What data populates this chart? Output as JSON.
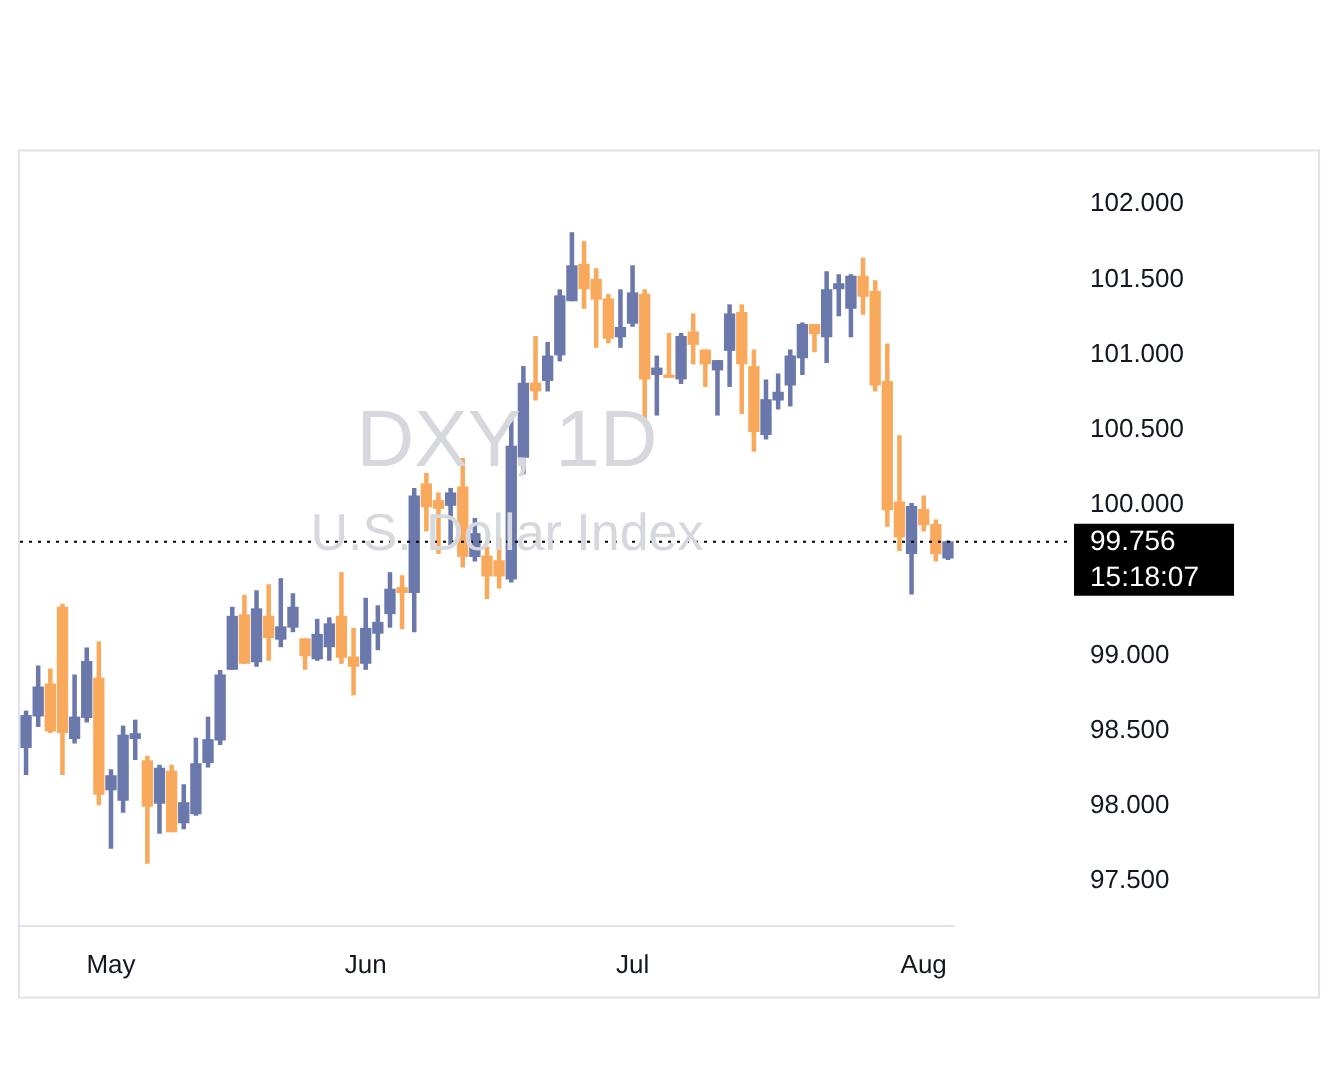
{
  "chart_data": {
    "type": "candlestick",
    "title": "DXY, 1D",
    "subtitle": "U.S. Dollar Index",
    "categories": [
      null,
      null,
      null,
      null,
      null,
      null,
      null,
      "May",
      null,
      null,
      null,
      null,
      null,
      null,
      null,
      null,
      null,
      null,
      null,
      null,
      null,
      null,
      null,
      null,
      null,
      null,
      null,
      null,
      "Jun",
      null,
      null,
      null,
      null,
      null,
      null,
      null,
      null,
      null,
      null,
      null,
      null,
      null,
      null,
      null,
      null,
      null,
      null,
      null,
      null,
      null,
      "Jul",
      null,
      null,
      null,
      null,
      null,
      null,
      null,
      null,
      null,
      null,
      null,
      null,
      null,
      null,
      null,
      null,
      null,
      null,
      null,
      null,
      null,
      null,
      null,
      "Aug",
      null,
      null
    ],
    "ohlc": [
      [
        98.39,
        98.63,
        98.21,
        98.6
      ],
      [
        98.6,
        98.93,
        98.53,
        98.79
      ],
      [
        98.81,
        98.91,
        98.49,
        98.5
      ],
      [
        99.32,
        99.34,
        98.21,
        98.49
      ],
      [
        98.45,
        98.87,
        98.42,
        98.59
      ],
      [
        98.59,
        99.05,
        98.56,
        98.96
      ],
      [
        98.85,
        99.09,
        98.01,
        98.08
      ],
      [
        98.11,
        98.24,
        97.72,
        98.2
      ],
      [
        98.04,
        98.53,
        97.96,
        98.47
      ],
      [
        98.45,
        98.57,
        98.31,
        98.48
      ],
      [
        98.3,
        98.33,
        97.62,
        98.0
      ],
      [
        98.02,
        98.27,
        97.82,
        98.25
      ],
      [
        98.23,
        98.27,
        97.83,
        97.83
      ],
      [
        97.89,
        98.14,
        97.85,
        98.02
      ],
      [
        97.95,
        98.45,
        97.94,
        98.28
      ],
      [
        98.29,
        98.59,
        98.26,
        98.44
      ],
      [
        98.44,
        98.9,
        98.41,
        98.87
      ],
      [
        98.91,
        99.32,
        98.91,
        99.26
      ],
      [
        99.27,
        99.4,
        98.95,
        98.95
      ],
      [
        98.96,
        99.43,
        98.93,
        99.31
      ],
      [
        99.26,
        99.47,
        98.97,
        99.12
      ],
      [
        99.11,
        99.51,
        99.06,
        99.19
      ],
      [
        99.19,
        99.41,
        99.16,
        99.32
      ],
      [
        99.11,
        99.11,
        98.91,
        99.0
      ],
      [
        98.98,
        99.24,
        98.97,
        99.14
      ],
      [
        99.06,
        99.25,
        98.97,
        99.21
      ],
      [
        99.26,
        99.55,
        98.95,
        98.99
      ],
      [
        98.99,
        99.18,
        98.74,
        98.93
      ],
      [
        98.95,
        99.38,
        98.91,
        99.18
      ],
      [
        99.15,
        99.33,
        99.04,
        99.22
      ],
      [
        99.28,
        99.55,
        99.19,
        99.44
      ],
      [
        99.45,
        99.53,
        99.18,
        99.42
      ],
      [
        99.42,
        100.11,
        99.16,
        100.06
      ],
      [
        100.14,
        100.21,
        99.83,
        99.99
      ],
      [
        100.03,
        100.08,
        99.68,
        99.98
      ],
      [
        100.0,
        100.11,
        99.72,
        100.08
      ],
      [
        100.12,
        100.31,
        99.59,
        99.66
      ],
      [
        99.66,
        99.91,
        99.63,
        99.81
      ],
      [
        99.66,
        99.72,
        99.38,
        99.53
      ],
      [
        99.63,
        99.78,
        99.45,
        99.53
      ],
      [
        99.51,
        100.58,
        99.49,
        100.39
      ],
      [
        100.32,
        100.92,
        100.21,
        100.81
      ],
      [
        100.81,
        101.12,
        100.7,
        100.76
      ],
      [
        100.83,
        101.08,
        100.76,
        100.99
      ],
      [
        101.0,
        101.43,
        100.96,
        101.39
      ],
      [
        101.36,
        101.81,
        101.36,
        101.59
      ],
      [
        101.6,
        101.75,
        101.31,
        101.44
      ],
      [
        101.5,
        101.57,
        101.05,
        101.37
      ],
      [
        101.37,
        101.4,
        101.08,
        101.11
      ],
      [
        101.12,
        101.43,
        101.05,
        101.18
      ],
      [
        101.21,
        101.59,
        101.19,
        101.41
      ],
      [
        101.4,
        101.43,
        100.56,
        100.84
      ],
      [
        100.87,
        100.99,
        100.6,
        100.91
      ],
      [
        100.86,
        101.14,
        100.85,
        100.85
      ],
      [
        100.84,
        101.14,
        100.81,
        101.12
      ],
      [
        101.15,
        101.27,
        100.94,
        101.07
      ],
      [
        101.03,
        101.03,
        100.79,
        100.94
      ],
      [
        100.9,
        100.96,
        100.6,
        100.96
      ],
      [
        101.03,
        101.33,
        100.79,
        101.27
      ],
      [
        101.28,
        101.33,
        100.61,
        100.94
      ],
      [
        100.92,
        101.03,
        100.36,
        100.49
      ],
      [
        100.47,
        100.83,
        100.44,
        100.7
      ],
      [
        100.7,
        100.87,
        100.64,
        100.75
      ],
      [
        100.8,
        101.03,
        100.66,
        100.99
      ],
      [
        100.98,
        101.21,
        100.87,
        101.2
      ],
      [
        101.2,
        101.2,
        101.02,
        101.14
      ],
      [
        101.12,
        101.55,
        100.95,
        101.43
      ],
      [
        101.44,
        101.53,
        101.26,
        101.47
      ],
      [
        101.31,
        101.53,
        101.12,
        101.52
      ],
      [
        101.52,
        101.64,
        101.27,
        101.39
      ],
      [
        101.42,
        101.49,
        100.76,
        100.8
      ],
      [
        100.82,
        101.07,
        99.86,
        99.97
      ],
      [
        100.02,
        100.46,
        99.7,
        99.79
      ],
      [
        99.68,
        100.01,
        99.41,
        99.99
      ],
      [
        99.97,
        100.06,
        99.83,
        99.87
      ],
      [
        99.87,
        99.9,
        99.63,
        99.68
      ],
      [
        99.65,
        99.76,
        99.64,
        99.756
      ]
    ],
    "colors": [
      "#6a78ab",
      "#6a78ab",
      "#f9a95c",
      "#f9a95c",
      "#6a78ab",
      "#6a78ab",
      "#f9a95c",
      "#6a78ab",
      "#6a78ab",
      "#6a78ab",
      "#f9a95c",
      "#6a78ab",
      "#f9a95c",
      "#6a78ab",
      "#6a78ab",
      "#6a78ab",
      "#6a78ab",
      "#6a78ab",
      "#f9a95c",
      "#6a78ab",
      "#f9a95c",
      "#6a78ab",
      "#6a78ab",
      "#f9a95c",
      "#6a78ab",
      "#6a78ab",
      "#f9a95c",
      "#f9a95c",
      "#6a78ab",
      "#6a78ab",
      "#6a78ab",
      "#f9a95c",
      "#6a78ab",
      "#f9a95c",
      "#f9a95c",
      "#6a78ab",
      "#f9a95c",
      "#6a78ab",
      "#f9a95c",
      "#f9a95c",
      "#6a78ab",
      "#6a78ab",
      "#f9a95c",
      "#6a78ab",
      "#6a78ab",
      "#6a78ab",
      "#f9a95c",
      "#f9a95c",
      "#f9a95c",
      "#6a78ab",
      "#6a78ab",
      "#f9a95c",
      "#6a78ab",
      "#f9a95c",
      "#6a78ab",
      "#f9a95c",
      "#f9a95c",
      "#6a78ab",
      "#6a78ab",
      "#f9a95c",
      "#f9a95c",
      "#6a78ab",
      "#6a78ab",
      "#6a78ab",
      "#6a78ab",
      "#f9a95c",
      "#6a78ab",
      "#6a78ab",
      "#6a78ab",
      "#f9a95c",
      "#f9a95c",
      "#f9a95c",
      "#f9a95c",
      "#6a78ab",
      "#f9a95c",
      "#f9a95c",
      "#6a78ab"
    ],
    "ylim": [
      97.2,
      102.35
    ],
    "yticks": [
      {
        "value": 97.5,
        "label": "97.500"
      },
      {
        "value": 98,
        "label": "98.000"
      },
      {
        "value": 98.5,
        "label": "98.500"
      },
      {
        "value": 99,
        "label": "99.000"
      },
      {
        "value": 100,
        "label": "100.000"
      },
      {
        "value": 100.5,
        "label": "100.500"
      },
      {
        "value": 101,
        "label": "101.000"
      },
      {
        "value": 101.5,
        "label": "101.500"
      },
      {
        "value": 102,
        "label": "102.000"
      }
    ],
    "ref_lines": [
      {
        "axis": "y",
        "value": 99.756,
        "label": "99.756",
        "color": "#000000",
        "line_style": "dotted"
      }
    ],
    "annotations": [
      "15:18:07"
    ],
    "grid": false,
    "legend": false
  }
}
